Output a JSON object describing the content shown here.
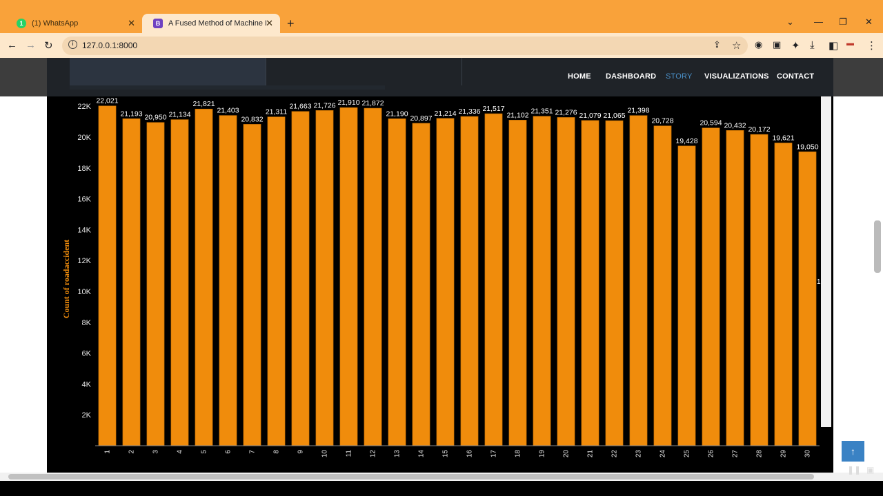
{
  "browser": {
    "tabs": [
      {
        "label": "(1) WhatsApp",
        "favicon": "1",
        "favicon_color": "#25d366"
      },
      {
        "label": "A Fused Method of Machine Lear",
        "favicon": "B",
        "favicon_color": "#6f42c1"
      }
    ],
    "url": "127.0.0.1:8000"
  },
  "nav": {
    "items": [
      {
        "label": "HOME",
        "active": false
      },
      {
        "label": "DASHBOARD",
        "active": false
      },
      {
        "label": "STORY",
        "active": true
      },
      {
        "label": "VISUALIZATIONS",
        "active": false
      },
      {
        "label": "CONTACT",
        "active": false
      }
    ]
  },
  "chart_data": {
    "type": "bar",
    "ylabel": "Count of roadaccident",
    "xlabel": "",
    "ylim": [
      0,
      22500
    ],
    "yticks": [
      "2K",
      "4K",
      "6K",
      "8K",
      "10K",
      "12K",
      "14K",
      "16K",
      "18K",
      "20K",
      "22K"
    ],
    "bar_color": "#f08c0c",
    "categories": [
      "1",
      "2",
      "3",
      "4",
      "5",
      "6",
      "7",
      "8",
      "9",
      "10",
      "11",
      "12",
      "13",
      "14",
      "15",
      "16",
      "17",
      "18",
      "19",
      "20",
      "21",
      "22",
      "23",
      "24",
      "25",
      "26",
      "27",
      "28",
      "29",
      "30"
    ],
    "values": [
      22021,
      21193,
      20950,
      21134,
      21821,
      21403,
      20832,
      21311,
      21663,
      21726,
      21910,
      21872,
      21190,
      20897,
      21214,
      21336,
      21517,
      21102,
      21351,
      21276,
      21079,
      21065,
      21398,
      20728,
      19428,
      20594,
      20432,
      20172,
      19621,
      19050
    ],
    "labels": [
      "22,021",
      "21,193",
      "20,950",
      "21,134",
      "21,821",
      "21,403",
      "20,832",
      "21,311",
      "21,663",
      "21,726",
      "21,910",
      "21,872",
      "21,190",
      "20,897",
      "21,214",
      "21,336",
      "21,517",
      "21,102",
      "21,351",
      "21,276",
      "21,079",
      "21,065",
      "21,398",
      "20,728",
      "19,428",
      "20,594",
      "20,432",
      "20,172",
      "19,621",
      "19,050"
    ],
    "clipped_label": "1"
  },
  "ui": {
    "scroll_top_icon": "arrow-up-icon",
    "player_icons": [
      "pause-icon",
      "picture-in-picture-icon"
    ]
  }
}
